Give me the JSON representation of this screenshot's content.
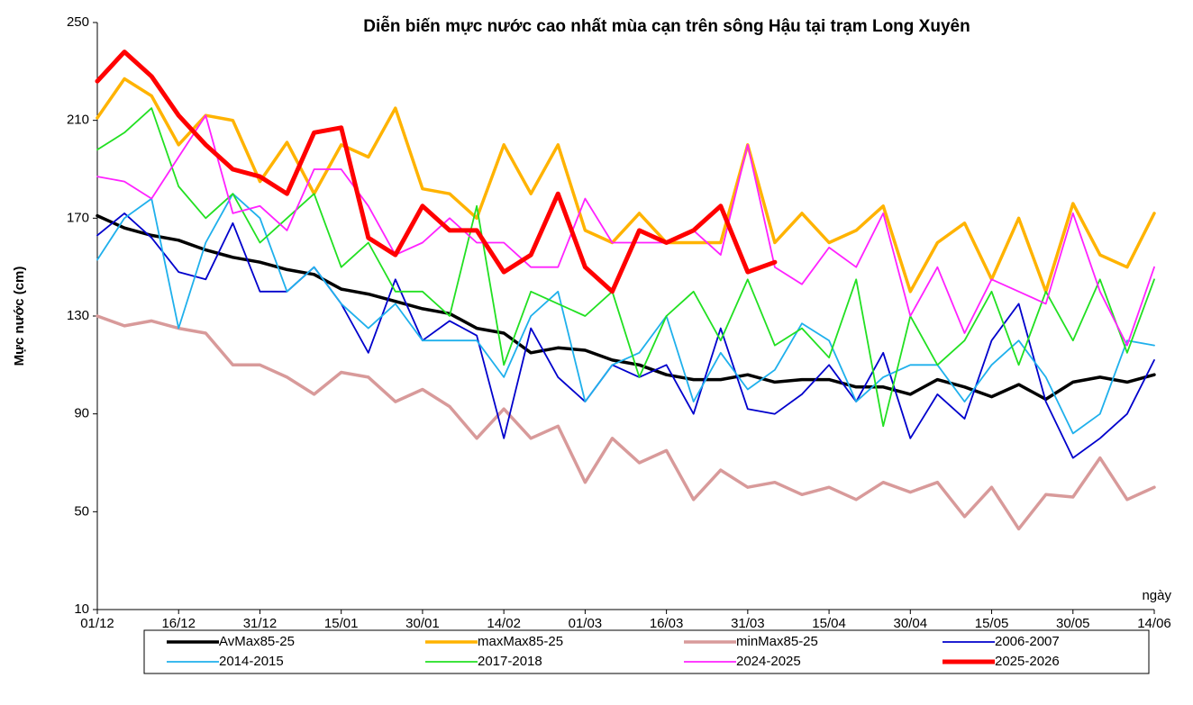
{
  "chart_data": {
    "type": "line",
    "title": "Diễn biến mực nước cao nhất mùa cạn trên sông Hậu tại trạm Long Xuyên",
    "y_label": "Mực nước (cm)",
    "x_label": "ngày",
    "x": [
      0,
      5,
      10,
      15,
      20,
      25,
      30,
      35,
      40,
      45,
      50,
      55,
      60,
      65,
      70,
      75,
      80,
      85,
      90,
      95,
      100,
      105,
      110,
      115,
      120,
      125,
      130,
      135,
      140,
      145,
      150,
      155,
      160,
      165,
      170,
      175,
      180,
      185,
      190,
      195
    ],
    "xlim": [
      0,
      195
    ],
    "xticks": [
      {
        "value": 0,
        "label": "01/12"
      },
      {
        "value": 15,
        "label": "16/12"
      },
      {
        "value": 30,
        "label": "31/12"
      },
      {
        "value": 45,
        "label": "15/01"
      },
      {
        "value": 60,
        "label": "30/01"
      },
      {
        "value": 75,
        "label": "14/02"
      },
      {
        "value": 90,
        "label": "01/03"
      },
      {
        "value": 105,
        "label": "16/03"
      },
      {
        "value": 120,
        "label": "31/03"
      },
      {
        "value": 135,
        "label": "15/04"
      },
      {
        "value": 150,
        "label": "30/04"
      },
      {
        "value": 165,
        "label": "15/05"
      },
      {
        "value": 180,
        "label": "30/05"
      },
      {
        "value": 195,
        "label": "14/06"
      }
    ],
    "ylim": [
      10,
      250
    ],
    "yticks": [
      10,
      50,
      90,
      130,
      170,
      210,
      250
    ],
    "grid": false,
    "legend": "bottom",
    "series": [
      {
        "name": "AvMax85-25",
        "color": "#000000",
        "width": 3.5,
        "values": [
          171,
          166,
          163,
          161,
          157,
          154,
          152,
          149,
          147,
          141,
          139,
          136,
          133,
          131,
          125,
          123,
          115,
          117,
          116,
          112,
          110,
          106,
          104,
          104,
          106,
          103,
          104,
          104,
          101,
          101,
          98,
          104,
          101,
          97,
          102,
          96,
          103,
          105,
          103,
          106
        ]
      },
      {
        "name": "maxMax85-25",
        "color": "#ffb300",
        "width": 3.5,
        "values": [
          211,
          227,
          220,
          200,
          212,
          210,
          185,
          201,
          180,
          200,
          195,
          215,
          182,
          180,
          170,
          200,
          180,
          200,
          165,
          160,
          172,
          160,
          160,
          160,
          200,
          160,
          172,
          160,
          165,
          175,
          140,
          160,
          168,
          145,
          170,
          140,
          176,
          155,
          150,
          172
        ]
      },
      {
        "name": "minMax85-25",
        "color": "#d89a9a",
        "width": 3.5,
        "values": [
          130,
          126,
          128,
          125,
          123,
          110,
          110,
          105,
          98,
          107,
          105,
          95,
          100,
          93,
          80,
          92,
          80,
          85,
          62,
          80,
          70,
          75,
          55,
          67,
          60,
          62,
          57,
          60,
          55,
          62,
          58,
          62,
          48,
          60,
          43,
          57,
          56,
          72,
          55,
          60
        ]
      },
      {
        "name": "2006-2007",
        "color": "#0000cc",
        "width": 1.8,
        "values": [
          163,
          172,
          162,
          148,
          145,
          168,
          140,
          140,
          150,
          135,
          115,
          145,
          120,
          128,
          122,
          80,
          125,
          105,
          95,
          110,
          105,
          110,
          90,
          125,
          92,
          90,
          98,
          110,
          95,
          115,
          80,
          98,
          88,
          120,
          135,
          95,
          72,
          80,
          90,
          112
        ]
      },
      {
        "name": "2014-2015",
        "color": "#1fb0ec",
        "width": 1.8,
        "values": [
          153,
          170,
          178,
          125,
          160,
          180,
          170,
          140,
          150,
          135,
          125,
          135,
          120,
          120,
          120,
          105,
          130,
          140,
          95,
          110,
          115,
          130,
          95,
          115,
          100,
          108,
          127,
          120,
          95,
          105,
          110,
          110,
          95,
          110,
          120,
          105,
          82,
          90,
          120,
          118
        ]
      },
      {
        "name": "2017-2018",
        "color": "#22e022",
        "width": 1.8,
        "values": [
          198,
          205,
          215,
          183,
          170,
          180,
          160,
          170,
          180,
          150,
          160,
          140,
          140,
          130,
          175,
          110,
          140,
          135,
          130,
          140,
          105,
          130,
          140,
          120,
          145,
          118,
          125,
          113,
          145,
          85,
          130,
          110,
          120,
          140,
          110,
          140,
          120,
          145,
          115,
          145
        ]
      },
      {
        "name": "2024-2025",
        "color": "#ff22ff",
        "width": 1.8,
        "values": [
          187,
          185,
          178,
          195,
          212,
          172,
          175,
          165,
          190,
          190,
          175,
          155,
          160,
          170,
          160,
          160,
          150,
          150,
          178,
          160,
          160,
          160,
          165,
          155,
          200,
          150,
          143,
          158,
          150,
          172,
          130,
          150,
          123,
          145,
          140,
          135,
          172,
          140,
          118,
          150
        ]
      },
      {
        "name": "2025-2026",
        "color": "#ff0000",
        "width": 5,
        "values": [
          226,
          238,
          228,
          212,
          200,
          190,
          187,
          180,
          205,
          207,
          162,
          155,
          175,
          165,
          165,
          148,
          155,
          180,
          150,
          140,
          165,
          160,
          165,
          175,
          148,
          152,
          null,
          null,
          null,
          null,
          null,
          null,
          null,
          null,
          null,
          null,
          null,
          null,
          null,
          null
        ]
      }
    ]
  }
}
